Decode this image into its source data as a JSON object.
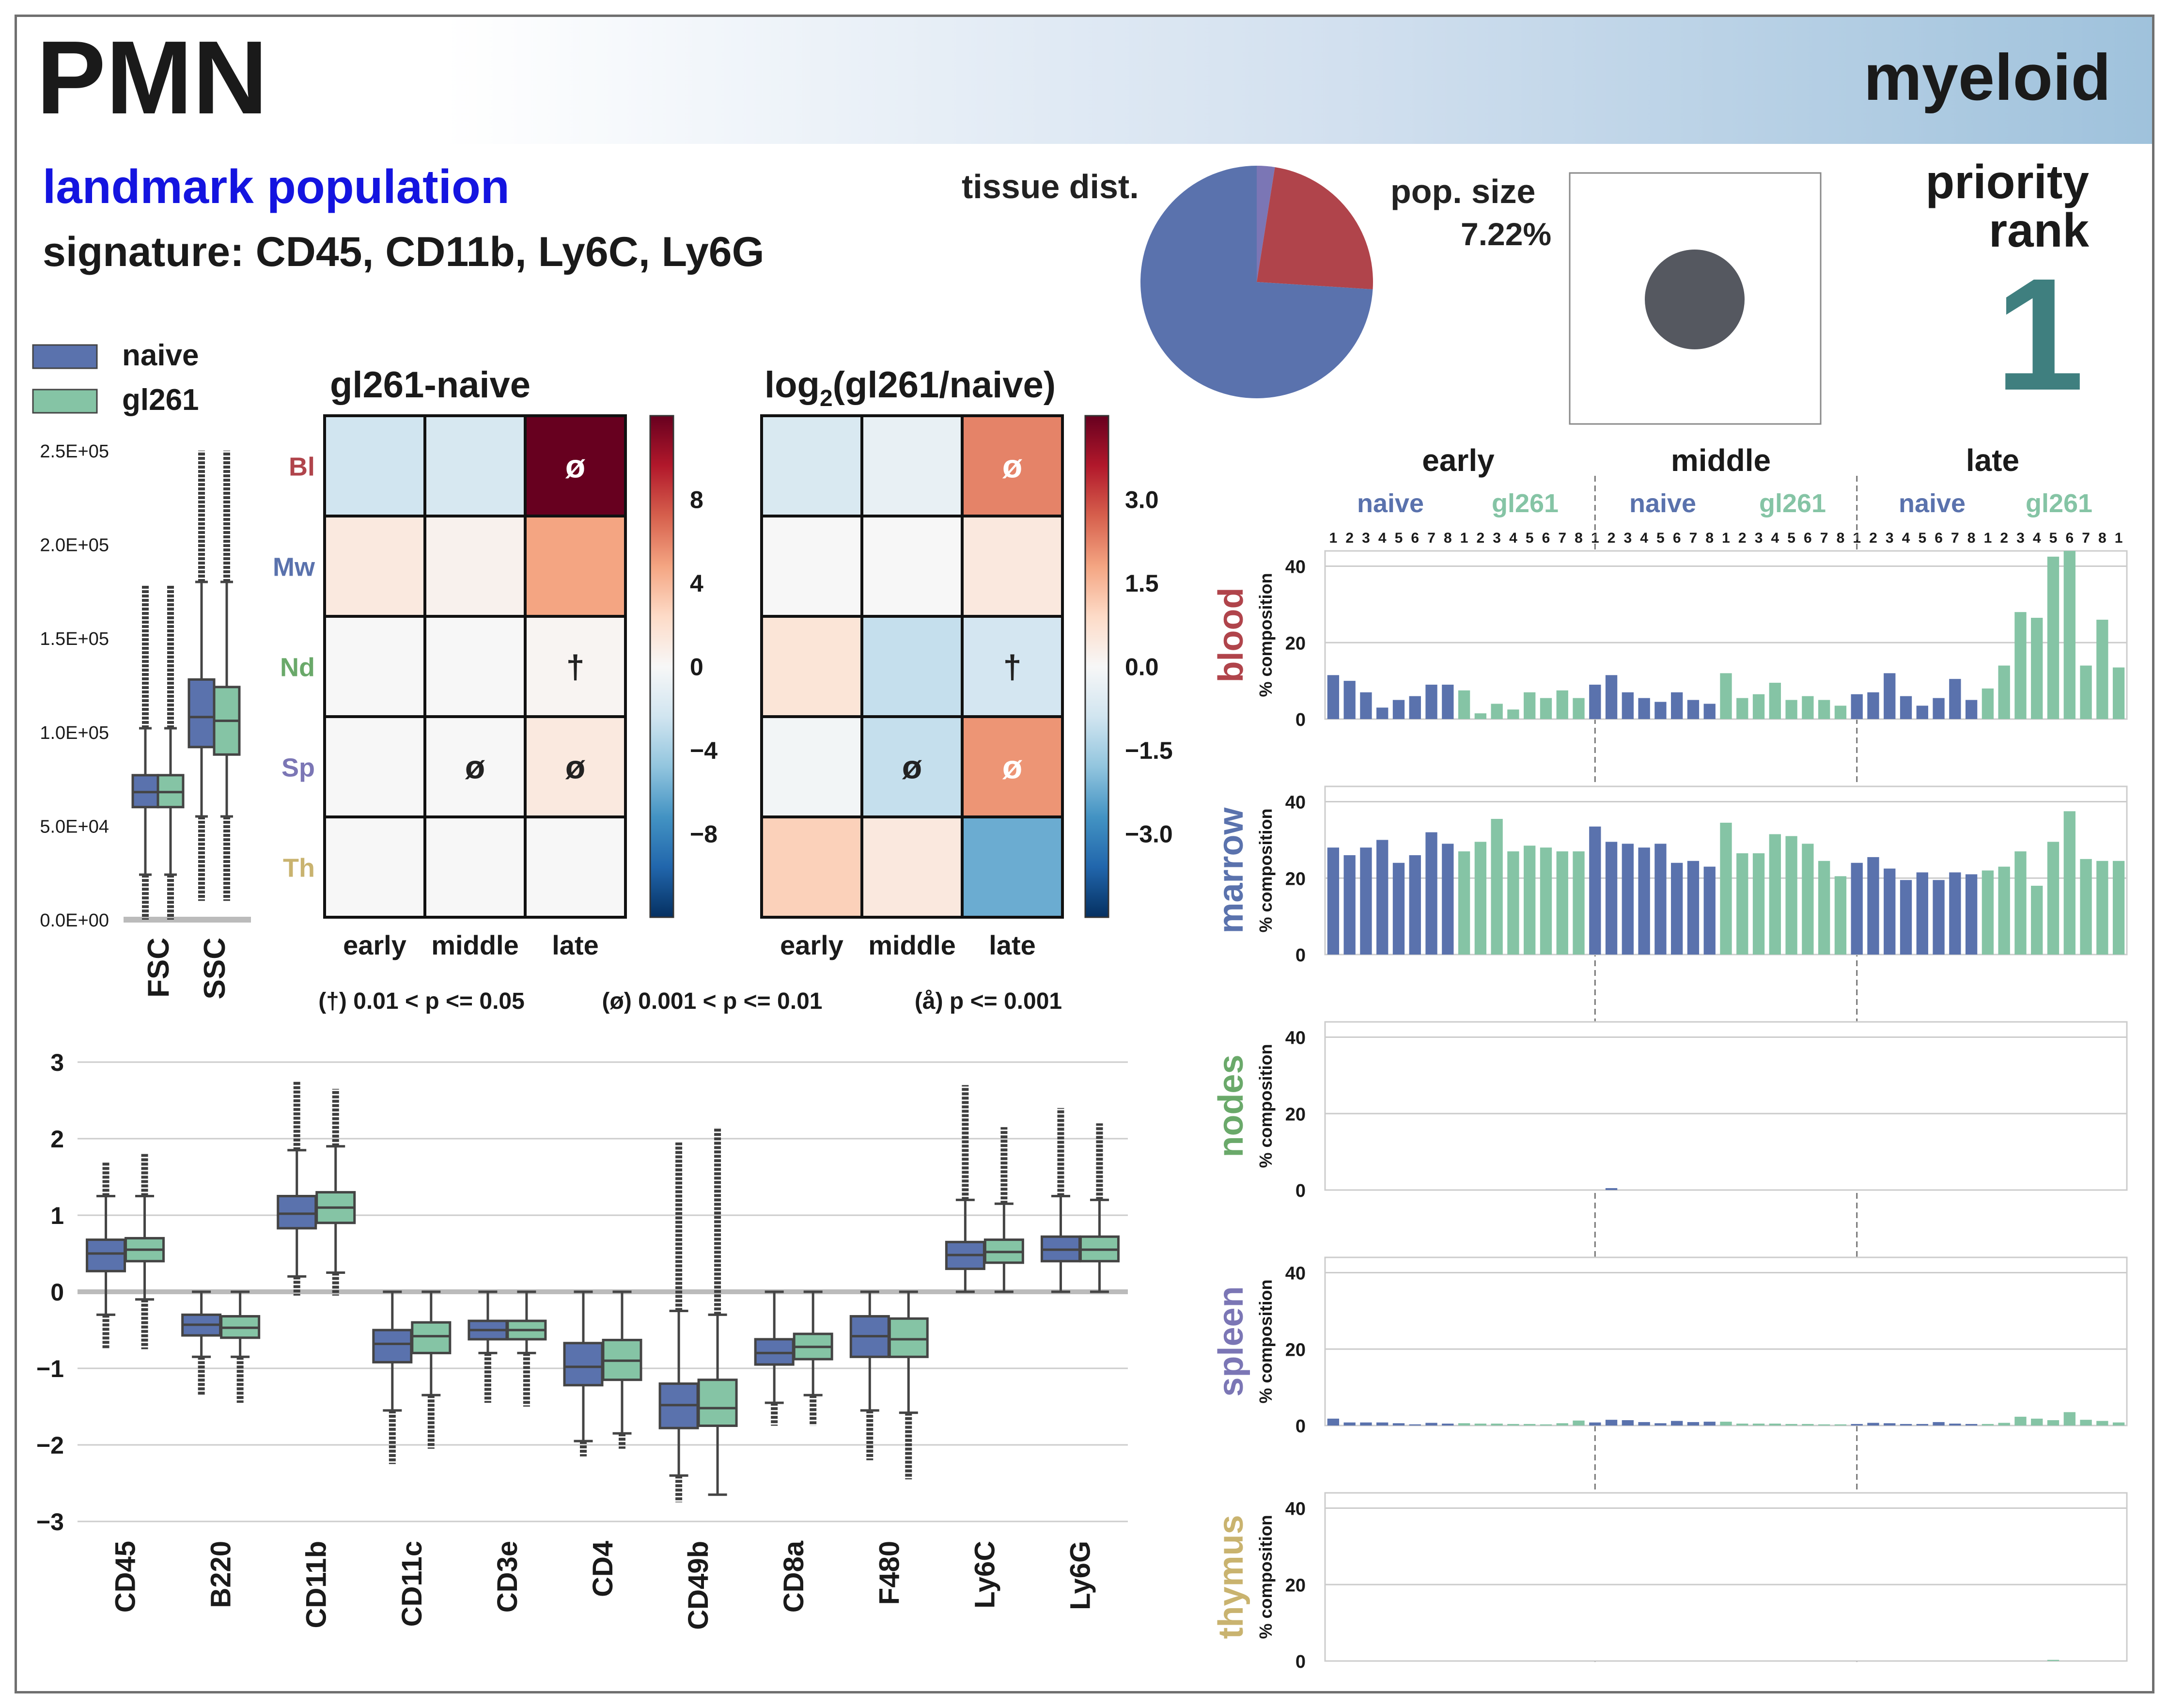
{
  "header": {
    "title": "PMN",
    "cell_class": "myeloid",
    "population_type": "landmark population",
    "signature": "signature: CD45, CD11b, Ly6C, Ly6G",
    "tissue_dist_label": "tissue dist.",
    "pop_size_label": "pop. size",
    "pop_size_value": "7.22%",
    "priority_label_1": "priority",
    "priority_label_2": "rank",
    "priority_value": "1"
  },
  "colors": {
    "naive": "#5a72ad",
    "gl261": "#85c4a5",
    "blood": "#b0444b",
    "marrow": "#5a72ad",
    "nodes": "#6aa96a",
    "spleen": "#7b76b5",
    "thymus": "#c9b36f",
    "priority": "#3f7f7f",
    "landmark": "#1414e0"
  },
  "legend": {
    "items": [
      {
        "label": "naive",
        "color": "#5a72ad"
      },
      {
        "label": "gl261",
        "color": "#85c4a5"
      }
    ]
  },
  "footnote": {
    "dagger": "(†) 0.01 < p <= 0.05",
    "slash": "(ø) 0.001 < p <= 0.01",
    "ring": "(å) p <= 0.001"
  },
  "chart_data": [
    {
      "id": "tissue_pie",
      "type": "pie",
      "slices": [
        {
          "tissue": "blood",
          "percent": 23.5,
          "color": "#b0444b"
        },
        {
          "tissue": "marrow",
          "percent": 74.0,
          "color": "#5a72ad"
        },
        {
          "tissue": "spleen",
          "percent": 2.5,
          "color": "#7b76b5"
        }
      ]
    },
    {
      "id": "scatter_boxplot",
      "type": "box",
      "categories": [
        "FSC",
        "SSC"
      ],
      "yticks": [
        "0.0E+00",
        "5.0E+04",
        "1.0E+05",
        "1.5E+05",
        "2.0E+05",
        "2.5E+05"
      ],
      "ylim": [
        0,
        250000
      ],
      "series": [
        {
          "name": "naive",
          "boxes": [
            {
              "q1": 60000,
              "median": 68000,
              "q3": 77000,
              "whislo": 24000,
              "whishi": 102000,
              "outlo": 0,
              "outhi": 178000
            },
            {
              "q1": 92000,
              "median": 108000,
              "q3": 128000,
              "whislo": 55000,
              "whishi": 180000,
              "outlo": 10000,
              "outhi": 250000
            }
          ]
        },
        {
          "name": "gl261",
          "boxes": [
            {
              "q1": 60000,
              "median": 68000,
              "q3": 77000,
              "whislo": 24000,
              "whishi": 102000,
              "outlo": 0,
              "outhi": 178000
            },
            {
              "q1": 88000,
              "median": 106000,
              "q3": 124000,
              "whislo": 55000,
              "whishi": 180000,
              "outlo": 10000,
              "outhi": 250000
            }
          ]
        }
      ]
    },
    {
      "id": "heatmap_diff",
      "type": "heatmap",
      "title": "gl261-naive",
      "rows": [
        "Bl",
        "Mw",
        "Nd",
        "Sp",
        "Th"
      ],
      "columns": [
        "early",
        "middle",
        "late"
      ],
      "values": [
        [
          -2.0,
          -1.7,
          10.0
        ],
        [
          1.0,
          0.4,
          4.0
        ],
        [
          0.0,
          0.0,
          0.2
        ],
        [
          0.0,
          0.0,
          1.0
        ],
        [
          0.0,
          0.0,
          0.0
        ]
      ],
      "annotations": [
        [
          "",
          "",
          "ø"
        ],
        [
          "",
          "",
          ""
        ],
        [
          "",
          "",
          "†"
        ],
        [
          "",
          "ø",
          "ø"
        ],
        [
          "",
          "",
          ""
        ]
      ],
      "colorbar_ticks": [
        "8",
        "4",
        "0",
        "−4",
        "−8"
      ],
      "vlim": [
        -10,
        10
      ]
    },
    {
      "id": "heatmap_ratio",
      "type": "heatmap",
      "title_base": "log",
      "title_sub": "2",
      "title_rest": "(gl261/naive)",
      "rows": [
        "Bl",
        "Mw",
        "Nd",
        "Sp",
        "Th"
      ],
      "columns": [
        "early",
        "middle",
        "late"
      ],
      "values": [
        [
          -0.6,
          -0.3,
          1.9
        ],
        [
          0.0,
          0.0,
          0.4
        ],
        [
          0.5,
          -0.9,
          -0.7
        ],
        [
          -0.1,
          -0.9,
          1.7
        ],
        [
          0.9,
          0.4,
          -1.9
        ]
      ],
      "annotations": [
        [
          "",
          "",
          "ø"
        ],
        [
          "",
          "",
          ""
        ],
        [
          "",
          "",
          "†"
        ],
        [
          "",
          "ø",
          "ø"
        ],
        [
          "",
          "",
          ""
        ]
      ],
      "colorbar_ticks": [
        "3.0",
        "1.5",
        "0.0",
        "−1.5",
        "−3.0"
      ],
      "vlim": [
        -3.8,
        3.8
      ]
    },
    {
      "id": "marker_boxplot",
      "type": "box",
      "categories": [
        "CD45",
        "B220",
        "CD11b",
        "CD11c",
        "CD3e",
        "CD4",
        "CD49b",
        "CD8a",
        "F480",
        "Ly6C",
        "Ly6G"
      ],
      "yticks": [
        "3",
        "2",
        "1",
        "0",
        "−1",
        "−2",
        "−3"
      ],
      "ylim": [
        -3,
        3
      ],
      "series": [
        {
          "name": "naive",
          "boxes": [
            {
              "q1": 0.27,
              "median": 0.5,
              "q3": 0.68,
              "whislo": -0.3,
              "whishi": 1.25,
              "outlo": -0.75,
              "outhi": 1.7
            },
            {
              "q1": -0.57,
              "median": -0.43,
              "q3": -0.3,
              "whislo": -0.85,
              "whishi": 0.0,
              "outlo": -1.35,
              "outhi": 0.0
            },
            {
              "q1": 0.83,
              "median": 1.02,
              "q3": 1.25,
              "whislo": 0.2,
              "whishi": 1.85,
              "outlo": -0.05,
              "outhi": 2.75
            },
            {
              "q1": -0.92,
              "median": -0.68,
              "q3": -0.5,
              "whislo": -1.55,
              "whishi": 0.0,
              "outlo": -2.25,
              "outhi": 0.0
            },
            {
              "q1": -0.62,
              "median": -0.5,
              "q3": -0.38,
              "whislo": -0.8,
              "whishi": 0.0,
              "outlo": -1.45,
              "outhi": 0.0
            },
            {
              "q1": -1.22,
              "median": -0.98,
              "q3": -0.67,
              "whislo": -1.95,
              "whishi": 0.0,
              "outlo": -2.15,
              "outhi": 0.0
            },
            {
              "q1": -1.78,
              "median": -1.48,
              "q3": -1.2,
              "whislo": -2.4,
              "whishi": -0.25,
              "outlo": -2.75,
              "outhi": 1.95
            },
            {
              "q1": -0.95,
              "median": -0.8,
              "q3": -0.62,
              "whislo": -1.45,
              "whishi": 0.0,
              "outlo": -1.75,
              "outhi": 0.0
            },
            {
              "q1": -0.85,
              "median": -0.58,
              "q3": -0.32,
              "whislo": -1.55,
              "whishi": 0.0,
              "outlo": -2.2,
              "outhi": 0.0
            },
            {
              "q1": 0.3,
              "median": 0.48,
              "q3": 0.65,
              "whislo": 0.0,
              "whishi": 1.2,
              "outlo": 0.0,
              "outhi": 2.7
            },
            {
              "q1": 0.4,
              "median": 0.55,
              "q3": 0.72,
              "whislo": 0.0,
              "whishi": 1.25,
              "outlo": 0.0,
              "outhi": 2.4
            }
          ]
        },
        {
          "name": "gl261",
          "boxes": [
            {
              "q1": 0.4,
              "median": 0.55,
              "q3": 0.7,
              "whislo": -0.1,
              "whishi": 1.25,
              "outlo": -0.75,
              "outhi": 1.8
            },
            {
              "q1": -0.6,
              "median": -0.47,
              "q3": -0.32,
              "whislo": -0.85,
              "whishi": 0.0,
              "outlo": -1.45,
              "outhi": 0.0
            },
            {
              "q1": 0.9,
              "median": 1.1,
              "q3": 1.3,
              "whislo": 0.25,
              "whishi": 1.9,
              "outlo": -0.05,
              "outhi": 2.65
            },
            {
              "q1": -0.8,
              "median": -0.58,
              "q3": -0.4,
              "whislo": -1.35,
              "whishi": 0.0,
              "outlo": -2.05,
              "outhi": 0.0
            },
            {
              "q1": -0.62,
              "median": -0.5,
              "q3": -0.38,
              "whislo": -0.8,
              "whishi": 0.0,
              "outlo": -1.5,
              "outhi": 0.0
            },
            {
              "q1": -1.15,
              "median": -0.9,
              "q3": -0.63,
              "whislo": -1.85,
              "whishi": 0.0,
              "outlo": -2.05,
              "outhi": 0.0
            },
            {
              "q1": -1.75,
              "median": -1.52,
              "q3": -1.15,
              "whislo": -2.65,
              "whishi": -0.3,
              "outlo": -2.65,
              "outhi": 2.15
            },
            {
              "q1": -0.88,
              "median": -0.72,
              "q3": -0.55,
              "whislo": -1.35,
              "whishi": 0.0,
              "outlo": -1.75,
              "outhi": 0.0
            },
            {
              "q1": -0.85,
              "median": -0.62,
              "q3": -0.35,
              "whislo": -1.58,
              "whishi": 0.0,
              "outlo": -2.45,
              "outhi": 0.0
            },
            {
              "q1": 0.38,
              "median": 0.52,
              "q3": 0.68,
              "whislo": 0.0,
              "whishi": 1.15,
              "outlo": 0.0,
              "outhi": 2.15
            },
            {
              "q1": 0.4,
              "median": 0.55,
              "q3": 0.72,
              "whislo": 0.0,
              "whishi": 1.2,
              "outlo": 0.0,
              "outhi": 2.2
            }
          ]
        }
      ]
    },
    {
      "id": "tissue_composition",
      "type": "bar",
      "timepoints": [
        "early",
        "middle",
        "late"
      ],
      "conditions": [
        "naive",
        "gl261"
      ],
      "replicates": [
        "1",
        "2",
        "3",
        "4",
        "5",
        "6",
        "7",
        "8"
      ],
      "ylabel": "% composition",
      "yticks": [
        "0",
        "20",
        "40"
      ],
      "ylim": [
        0,
        44
      ],
      "panels": [
        {
          "tissue": "blood",
          "values": [
            11.5,
            10,
            7,
            3,
            5,
            6,
            9,
            9,
            7.5,
            1.5,
            4,
            2.5,
            7,
            5.5,
            7.5,
            5.5,
            9,
            11.5,
            7,
            5.5,
            4.5,
            7,
            5,
            4,
            12,
            5.5,
            6.5,
            9.5,
            5,
            6,
            5,
            3.5,
            6.5,
            7,
            12,
            6,
            3.5,
            5.5,
            10.5,
            5,
            8,
            14,
            28,
            26.5,
            42.5,
            44,
            14,
            26,
            13.5
          ]
        },
        {
          "tissue": "marrow",
          "values": [
            28,
            26,
            28,
            30,
            24,
            26,
            32,
            29,
            27,
            29.5,
            35.5,
            27,
            28.5,
            28,
            27,
            27,
            33.5,
            29.5,
            29,
            28,
            29,
            24,
            24.5,
            23,
            34.5,
            26.5,
            26.5,
            31.5,
            31,
            29,
            24.5,
            20.5,
            24,
            25.5,
            22.5,
            19.5,
            21.5,
            19.5,
            21.5,
            21,
            22,
            23,
            27,
            18,
            29.5,
            37.5,
            25,
            24.5,
            24.5
          ]
        },
        {
          "tissue": "nodes",
          "values": [
            0,
            0,
            0,
            0,
            0,
            0,
            0,
            0,
            0,
            0,
            0,
            0,
            0,
            0,
            0,
            0,
            0,
            0.5,
            0,
            0,
            0,
            0,
            0,
            0,
            0,
            0,
            0,
            0,
            0,
            0,
            0,
            0,
            0,
            0,
            0,
            0,
            0,
            0,
            0,
            0,
            0,
            0,
            0,
            0,
            0,
            0,
            0,
            0,
            0
          ]
        },
        {
          "tissue": "spleen",
          "values": [
            1.8,
            0.8,
            0.8,
            0.8,
            0.6,
            0.3,
            0.7,
            0.5,
            0.6,
            0.5,
            0.5,
            0.4,
            0.4,
            0.3,
            0.6,
            1.3,
            0.8,
            1.5,
            1.4,
            0.9,
            0.6,
            1.2,
            0.9,
            1.0,
            1.0,
            0.5,
            0.5,
            0.5,
            0.4,
            0.4,
            0.3,
            0.3,
            0.4,
            0.7,
            0.6,
            0.4,
            0.4,
            0.9,
            0.5,
            0.4,
            0.4,
            0.7,
            2.3,
            1.8,
            1.4,
            3.5,
            1.5,
            1.2,
            0.8
          ]
        },
        {
          "tissue": "thymus",
          "values": [
            0,
            0,
            0,
            0,
            0,
            0,
            0,
            0,
            0,
            0,
            0,
            0,
            0,
            0,
            0,
            0,
            0,
            0,
            0,
            0,
            0,
            0,
            0,
            0,
            0,
            0,
            0,
            0,
            0,
            0,
            0,
            0,
            0,
            0,
            0,
            0,
            0,
            0,
            0,
            0,
            0,
            0,
            0,
            0,
            0.3,
            0,
            0,
            0,
            0
          ]
        }
      ]
    }
  ]
}
